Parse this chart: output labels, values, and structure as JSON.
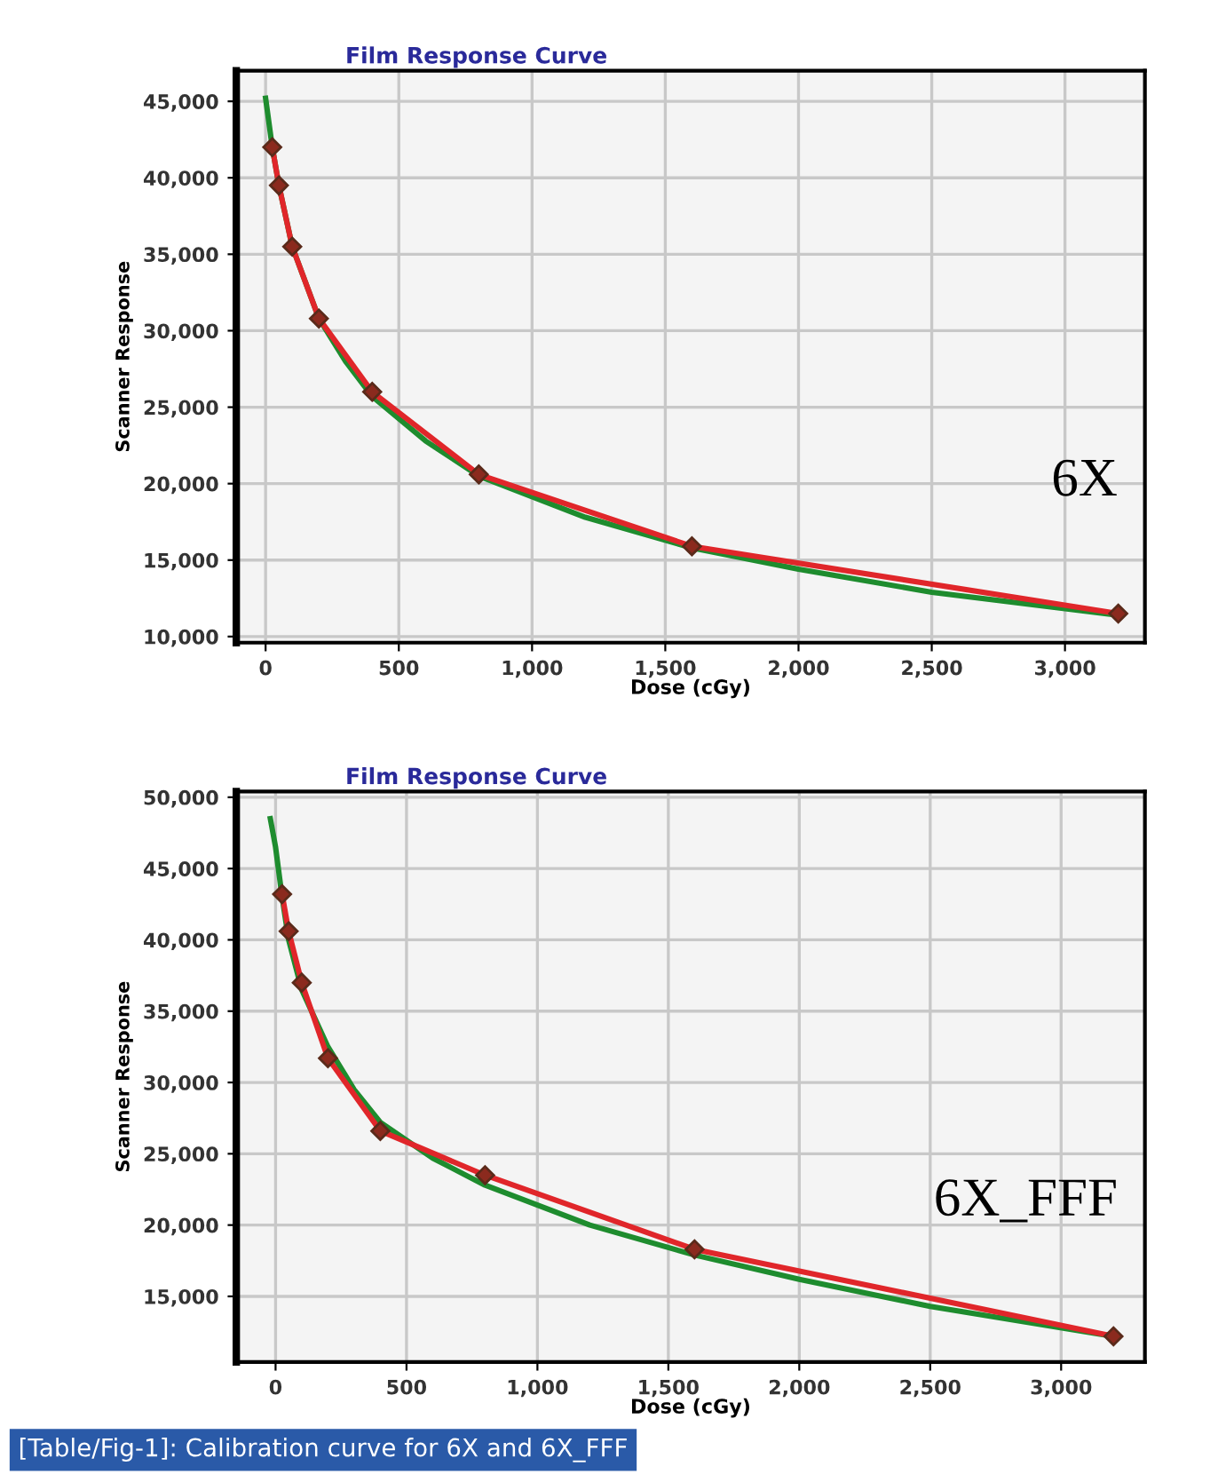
{
  "chart_data": [
    {
      "type": "line",
      "title": "Film Response Curve",
      "xlabel": "Dose (cGy)",
      "ylabel": "Scanner Response",
      "xlim": [
        -110,
        3300
      ],
      "ylim": [
        9600,
        47000
      ],
      "xticks": [
        {
          "value": 0,
          "label": "0"
        },
        {
          "value": 500,
          "label": "500"
        },
        {
          "value": 1000,
          "label": "1,000"
        },
        {
          "value": 1500,
          "label": "1,500"
        },
        {
          "value": 2000,
          "label": "2,000"
        },
        {
          "value": 2500,
          "label": "2,500"
        },
        {
          "value": 3000,
          "label": "3,000"
        }
      ],
      "yticks": [
        {
          "value": 10000,
          "label": "10,000"
        },
        {
          "value": 15000,
          "label": "15,000"
        },
        {
          "value": 20000,
          "label": "20,000"
        },
        {
          "value": 25000,
          "label": "25,000"
        },
        {
          "value": 30000,
          "label": "30,000"
        },
        {
          "value": 35000,
          "label": "35,000"
        },
        {
          "value": 40000,
          "label": "40,000"
        },
        {
          "value": 45000,
          "label": "45,000"
        }
      ],
      "grid": true,
      "annotations": [
        "6X"
      ],
      "series": [
        {
          "color": "#1e8c2e",
          "marker": "none",
          "x": [
            0,
            25,
            50,
            100,
            200,
            300,
            400,
            600,
            800,
            1200,
            1600,
            2000,
            2500,
            3200
          ],
          "values": [
            45200,
            42000,
            39500,
            35500,
            30800,
            28000,
            25700,
            22800,
            20500,
            17800,
            15800,
            14400,
            12900,
            11400
          ]
        },
        {
          "color": "#e0262a",
          "marker": "diamond",
          "x": [
            25,
            50,
            100,
            200,
            400,
            800,
            1600,
            3200
          ],
          "values": [
            42000,
            39500,
            35500,
            30800,
            26000,
            20600,
            15900,
            11500
          ]
        }
      ]
    },
    {
      "type": "line",
      "title": "Film Response Curve",
      "xlabel": "Dose (cGy)",
      "ylabel": "Scanner Response",
      "xlim": [
        -150,
        3320
      ],
      "ylim": [
        10400,
        50400
      ],
      "xticks": [
        {
          "value": 0,
          "label": "0"
        },
        {
          "value": 500,
          "label": "500"
        },
        {
          "value": 1000,
          "label": "1,000"
        },
        {
          "value": 1500,
          "label": "1,500"
        },
        {
          "value": 2000,
          "label": "2,000"
        },
        {
          "value": 2500,
          "label": "2,500"
        },
        {
          "value": 3000,
          "label": "3,000"
        }
      ],
      "yticks": [
        {
          "value": 15000,
          "label": "15,000"
        },
        {
          "value": 20000,
          "label": "20,000"
        },
        {
          "value": 25000,
          "label": "25,000"
        },
        {
          "value": 30000,
          "label": "30,000"
        },
        {
          "value": 35000,
          "label": "35,000"
        },
        {
          "value": 40000,
          "label": "40,000"
        },
        {
          "value": 45000,
          "label": "45,000"
        },
        {
          "value": 50000,
          "label": "50,000"
        }
      ],
      "grid": true,
      "annotations": [
        "6X_FFF",
        "[Table/Fig-1]: Calibration curve for 6X and 6X_FFF"
      ],
      "series": [
        {
          "color": "#1e8c2e",
          "marker": "none",
          "x": [
            -20,
            0,
            25,
            50,
            100,
            200,
            300,
            400,
            600,
            800,
            1200,
            1600,
            2000,
            2500,
            3200
          ],
          "values": [
            48500,
            46500,
            43000,
            40000,
            36500,
            32500,
            29500,
            27200,
            24700,
            22800,
            20000,
            17900,
            16200,
            14300,
            12200
          ]
        },
        {
          "color": "#e0262a",
          "marker": "diamond",
          "x": [
            25,
            50,
            100,
            200,
            400,
            800,
            1600,
            3200
          ],
          "values": [
            43200,
            40600,
            37000,
            31700,
            26600,
            23500,
            18300,
            12200
          ]
        }
      ]
    }
  ]
}
